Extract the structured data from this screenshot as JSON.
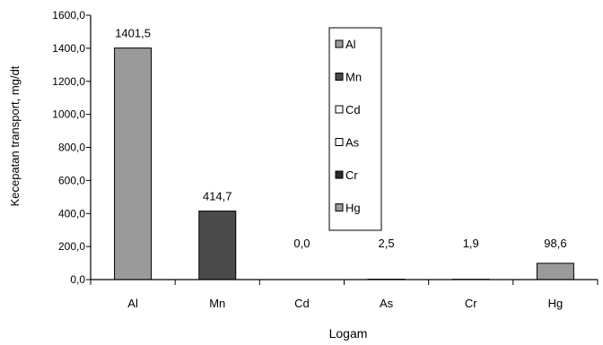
{
  "chart_data": {
    "type": "bar",
    "categories": [
      "Al",
      "Mn",
      "Cd",
      "As",
      "Cr",
      "Hg"
    ],
    "values": [
      1401.5,
      414.7,
      0.0,
      2.5,
      1.9,
      98.6
    ],
    "value_labels": [
      "1401,5",
      "414,7",
      "0,0",
      "2,5",
      "1,9",
      "98,6"
    ],
    "xlabel": "Logam",
    "ylabel": "Kecepatan transport, mg/dt",
    "ylim": [
      0,
      1600
    ],
    "yticks": [
      "0,0",
      "200,0",
      "400,0",
      "600,0",
      "800,0",
      "1000,0",
      "1200,0",
      "1400,0",
      "1600,0"
    ],
    "grid": false,
    "legend_position": "top-center",
    "legend": [
      {
        "name": "Al",
        "color": "#9a9a9a"
      },
      {
        "name": "Mn",
        "color": "#4a4a4a"
      },
      {
        "name": "Cd",
        "color": "#ffffff"
      },
      {
        "name": "As",
        "color": "#ffffff"
      },
      {
        "name": "Cr",
        "color": "#2a2a2a"
      },
      {
        "name": "Hg",
        "color": "#9a9a9a"
      }
    ],
    "bar_colors": [
      "#9a9a9a",
      "#4a4a4a",
      "#ffffff",
      "#ffffff",
      "#2a2a2a",
      "#9a9a9a"
    ]
  }
}
